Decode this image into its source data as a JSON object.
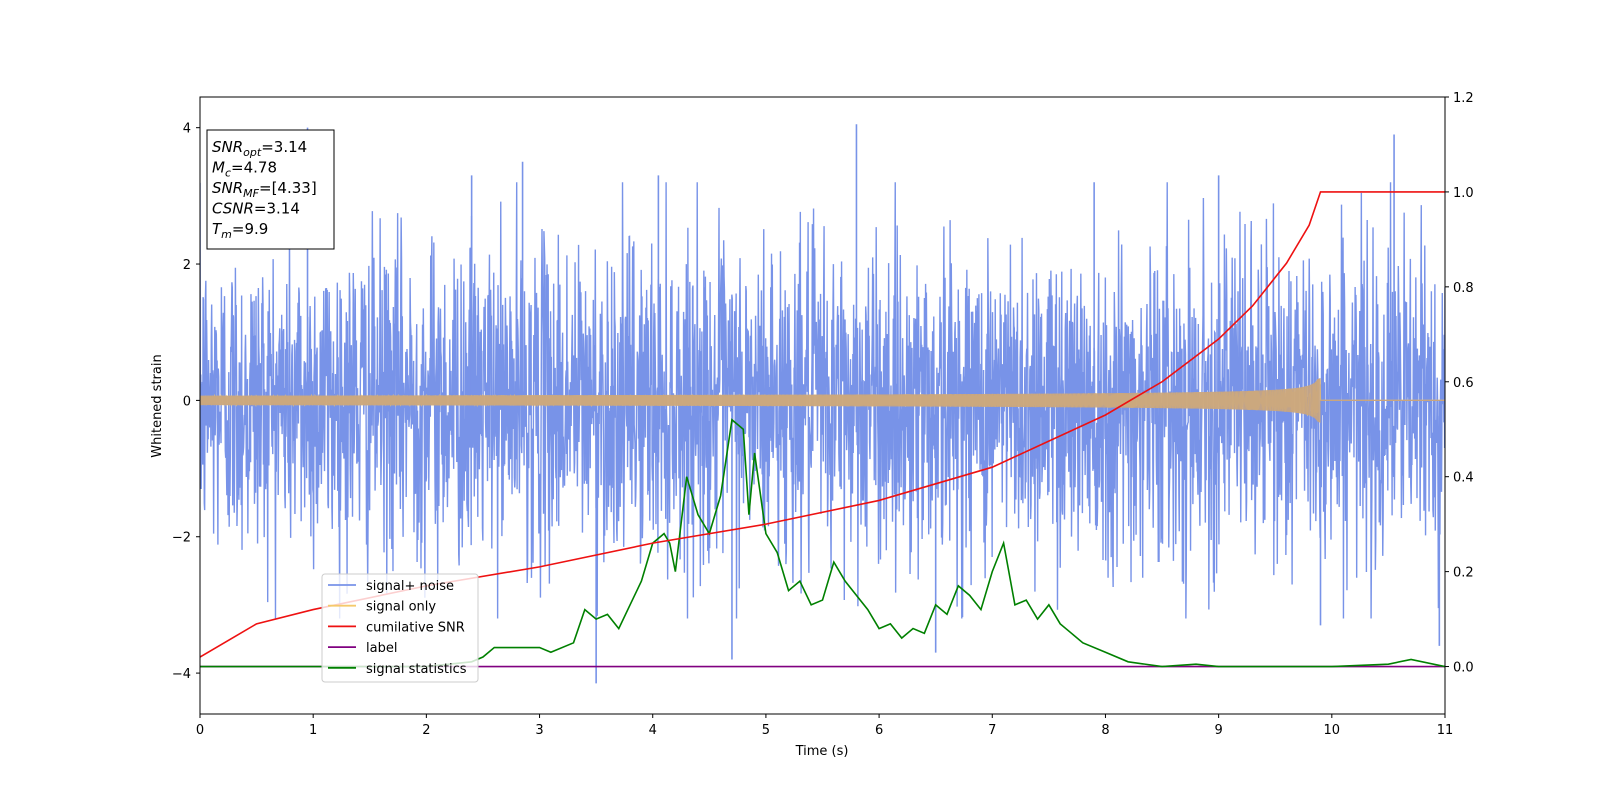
{
  "chart_data": {
    "type": "line",
    "xlabel": "Time (s)",
    "ylabel": "Whitened strain",
    "xlim": [
      0,
      11
    ],
    "ylim": [
      -4.6,
      4.45
    ],
    "y2lim": [
      -0.1,
      1.2
    ],
    "xticks": [
      0,
      1,
      2,
      3,
      4,
      5,
      6,
      7,
      8,
      9,
      10,
      11
    ],
    "yticks": [
      -4,
      -2,
      0,
      2,
      4
    ],
    "yticks_right": [
      0.0,
      0.2,
      0.4,
      0.6,
      0.8,
      1.0,
      1.2
    ],
    "xtick_labels": [
      "0",
      "1",
      "2",
      "3",
      "4",
      "5",
      "6",
      "7",
      "8",
      "9",
      "10",
      "11"
    ],
    "ytick_labels": [
      "−4",
      "−2",
      "0",
      "2",
      "4"
    ],
    "ytick_right_labels": [
      "0.0",
      "0.2",
      "0.4",
      "0.6",
      "0.8",
      "1.0",
      "1.2"
    ],
    "grid": false,
    "legend_position": "lower-left",
    "annotation": {
      "lines": [
        {
          "main": "SNR",
          "sub": "opt",
          "value": "=3.14"
        },
        {
          "main": "M",
          "sub": "c",
          "value": "=4.78"
        },
        {
          "main": "SNR",
          "sub": "MF",
          "value": "=[4.33]"
        },
        {
          "main": "CSNR",
          "sub": "",
          "value": "=3.14"
        },
        {
          "main": "T",
          "sub": "m",
          "value": "=9.9"
        }
      ]
    },
    "series": [
      {
        "name": "signal+ noise",
        "color": "#7893e8",
        "axis": "left",
        "description": "noisy whitened strain, amplitude mostly within about -3 to 3, peaks near 4",
        "peaks": [
          [
            0.95,
            4.0
          ],
          [
            2.4,
            3.3
          ],
          [
            2.85,
            3.5
          ],
          [
            3.5,
            -4.15
          ],
          [
            4.05,
            3.3
          ],
          [
            4.7,
            -3.8
          ],
          [
            5.8,
            4.05
          ],
          [
            6.5,
            -3.7
          ],
          [
            7.9,
            3.2
          ],
          [
            9.0,
            3.3
          ],
          [
            9.9,
            -3.3
          ],
          [
            10.55,
            3.9
          ],
          [
            10.95,
            -3.6
          ]
        ]
      },
      {
        "name": "signal only",
        "color": "#f5c96b",
        "axis": "left",
        "description": "chirp signal growing in amplitude until merger at t=9.9, then zero",
        "merger_time": 9.9,
        "max_amplitude": 0.33
      },
      {
        "name": "cumilative SNR",
        "color": "#ee1111",
        "axis": "right",
        "x": [
          0.0,
          0.5,
          1.0,
          2.0,
          3.0,
          4.0,
          5.0,
          6.0,
          7.0,
          8.0,
          8.5,
          9.0,
          9.3,
          9.6,
          9.8,
          9.9,
          11.0
        ],
        "y": [
          0.02,
          0.09,
          0.12,
          0.17,
          0.21,
          0.26,
          0.3,
          0.35,
          0.42,
          0.53,
          0.6,
          0.69,
          0.76,
          0.85,
          0.93,
          1.0,
          1.0
        ]
      },
      {
        "name": "label",
        "color": "#800080",
        "axis": "right",
        "x": [
          0,
          11
        ],
        "y": [
          0.0,
          0.0
        ]
      },
      {
        "name": "signal statistics",
        "color": "#008000",
        "axis": "right",
        "x": [
          0.0,
          1.0,
          2.0,
          2.4,
          2.5,
          2.6,
          2.8,
          3.0,
          3.1,
          3.3,
          3.4,
          3.5,
          3.6,
          3.7,
          3.8,
          3.9,
          4.0,
          4.1,
          4.15,
          4.2,
          4.3,
          4.4,
          4.5,
          4.6,
          4.7,
          4.8,
          4.85,
          4.9,
          5.0,
          5.1,
          5.2,
          5.3,
          5.4,
          5.5,
          5.6,
          5.7,
          5.8,
          5.9,
          6.0,
          6.1,
          6.2,
          6.3,
          6.4,
          6.5,
          6.6,
          6.7,
          6.8,
          6.9,
          7.0,
          7.1,
          7.2,
          7.3,
          7.4,
          7.5,
          7.6,
          7.7,
          7.8,
          8.0,
          8.2,
          8.5,
          8.8,
          9.0,
          9.5,
          10.0,
          10.5,
          10.7,
          11.0
        ],
        "y": [
          0.0,
          0.0,
          0.0,
          0.01,
          0.02,
          0.04,
          0.04,
          0.04,
          0.03,
          0.05,
          0.12,
          0.1,
          0.11,
          0.08,
          0.13,
          0.18,
          0.26,
          0.28,
          0.26,
          0.2,
          0.4,
          0.32,
          0.28,
          0.36,
          0.52,
          0.5,
          0.32,
          0.45,
          0.28,
          0.24,
          0.16,
          0.18,
          0.13,
          0.14,
          0.22,
          0.18,
          0.15,
          0.12,
          0.08,
          0.09,
          0.06,
          0.08,
          0.07,
          0.13,
          0.11,
          0.17,
          0.15,
          0.12,
          0.2,
          0.26,
          0.13,
          0.14,
          0.1,
          0.13,
          0.09,
          0.07,
          0.05,
          0.03,
          0.01,
          0.0,
          0.005,
          0.0,
          0.0,
          0.0,
          0.005,
          0.015,
          0.0
        ]
      }
    ]
  }
}
